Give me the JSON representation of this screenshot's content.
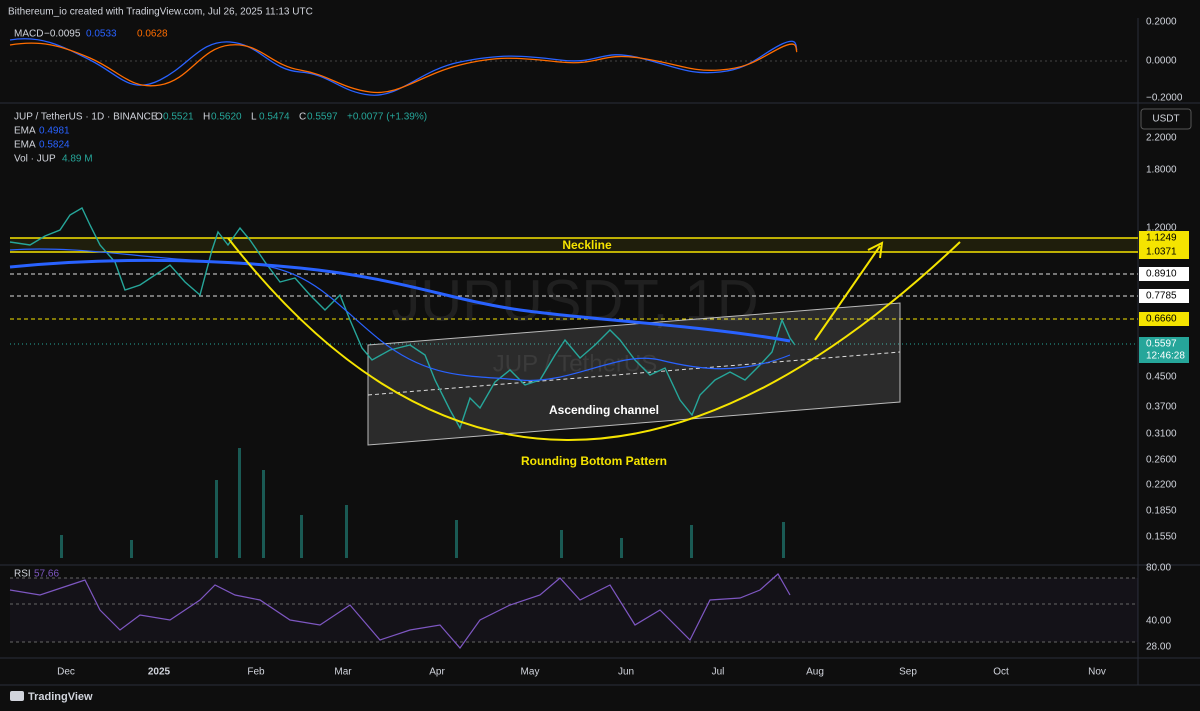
{
  "header": {
    "text": "Bithereum_io created with TradingView.com, Jul 26, 2025 11:13 UTC"
  },
  "macd": {
    "label": "MACD",
    "values": [
      "−0.0095",
      "0.0533",
      "0.0628"
    ],
    "axis": [
      "0.2000",
      "0.0000",
      "−0.2000"
    ]
  },
  "legend": {
    "symbol": "JUP / TetherUS · 1D · BINANCE",
    "ohlc": [
      [
        "O",
        "0.5521"
      ],
      [
        "H",
        "0.5620"
      ],
      [
        "L",
        "0.5474"
      ],
      [
        "C",
        "0.5597"
      ]
    ],
    "change": "+0.0077 (+1.39%)",
    "indicators": [
      [
        "EMA",
        "0.4981"
      ],
      [
        "EMA",
        "0.5824"
      ],
      [
        "Vol · JUP",
        "4.89 M"
      ]
    ]
  },
  "currency": "USDT",
  "price_axis": [
    "2.2000",
    "1.8000",
    "1.2000",
    "0.4500",
    "0.3700",
    "0.3100",
    "0.2600",
    "0.2200",
    "0.1850",
    "0.1550"
  ],
  "level_labels": [
    "1.1249",
    "1.0371",
    "0.8910",
    "0.7785",
    "0.6660"
  ],
  "last_price": {
    "price": "0.5597",
    "countdown": "12:46:28"
  },
  "watermark": {
    "symbol": "JUPUSDT, 1D",
    "name": "JUP / TetherUS"
  },
  "annotations": {
    "neckline": "Neckline",
    "channel": "Ascending channel",
    "pattern": "Rounding Bottom Pattern"
  },
  "rsi": {
    "label": "RSI",
    "value": "57.66",
    "axis": [
      "80.00",
      "40.00",
      "28.00"
    ]
  },
  "time_axis": [
    "Dec",
    "2025",
    "Feb",
    "Mar",
    "Apr",
    "May",
    "Jun",
    "Jul",
    "Aug",
    "Sep",
    "Oct",
    "Nov"
  ],
  "footer": {
    "brand": "TradingView"
  }
}
